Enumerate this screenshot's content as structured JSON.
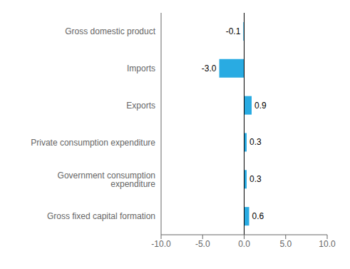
{
  "chart_data": {
    "type": "bar",
    "orientation": "horizontal",
    "categories": [
      "Gross fixed capital formation",
      "Government consumption expenditure",
      "Private consumption expenditure",
      "Exports",
      "Imports",
      "Gross domestic product"
    ],
    "values": [
      0.6,
      0.3,
      0.3,
      0.9,
      -3.0,
      -0.1
    ],
    "value_labels": [
      "0.6",
      "0.3",
      "0.3",
      "0.9",
      "-3.0",
      "-0.1"
    ],
    "data_labels": true,
    "color": "#29abe2",
    "xlim": [
      -10.0,
      10.0
    ],
    "xticks": [
      {
        "value": -10.0,
        "label": "-10.0"
      },
      {
        "value": -5.0,
        "label": "-5.0"
      },
      {
        "value": 0.0,
        "label": "0.0"
      },
      {
        "value": 5.0,
        "label": "5.0"
      },
      {
        "value": 10.0,
        "label": "10.0"
      }
    ],
    "grid": false
  }
}
